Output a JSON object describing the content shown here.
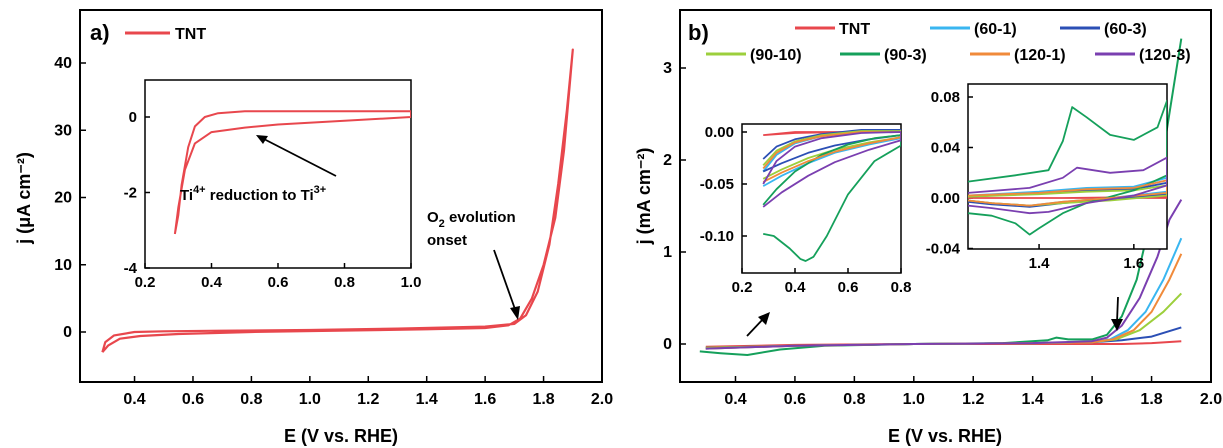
{
  "chart_data": [
    {
      "panel": "a)",
      "type": "line",
      "xlabel": "E (V vs. RHE)",
      "ylabel": "j (μA cm⁻²)",
      "xlim": [
        0.28,
        2.0
      ],
      "ylim": [
        -5,
        45
      ],
      "xticks": [
        "0.4",
        "0.6",
        "0.8",
        "1.0",
        "1.2",
        "1.4",
        "1.6",
        "1.8",
        "2.0"
      ],
      "yticks": [
        "0",
        "10",
        "20",
        "30",
        "40"
      ],
      "legend": [
        "TNT"
      ],
      "legend_position": "top-left",
      "colors": {
        "TNT": "#e8474d"
      },
      "series": [
        {
          "name": "TNT",
          "x": [
            0.29,
            0.31,
            0.35,
            0.42,
            0.55,
            0.8,
            1.1,
            1.4,
            1.6,
            1.68,
            1.72,
            1.76,
            1.8,
            1.84,
            1.87,
            1.9,
            1.88,
            1.85,
            1.82,
            1.78,
            1.74,
            1.7,
            1.6,
            1.3,
            1.0,
            0.7,
            0.5,
            0.4,
            0.33,
            0.3,
            0.29
          ],
          "y": [
            -3.0,
            -2.0,
            -1.0,
            -0.6,
            -0.3,
            0.0,
            0.2,
            0.4,
            0.6,
            1.0,
            2.0,
            5.0,
            10.0,
            17.0,
            27.0,
            42.0,
            33.0,
            22.0,
            13.0,
            6.0,
            2.5,
            1.2,
            0.8,
            0.5,
            0.3,
            0.2,
            0.1,
            0.0,
            -0.5,
            -1.5,
            -3.0
          ]
        }
      ],
      "annotations": [
        {
          "text_parts": [
            "O",
            "2",
            " evolution"
          ],
          "line2": "onset",
          "x": 1.7,
          "y": 1.0
        }
      ],
      "inset": {
        "xlim": [
          0.2,
          1.0
        ],
        "ylim": [
          -4,
          1.0
        ],
        "xticks": [
          "0.2",
          "0.4",
          "0.6",
          "0.8",
          "1.0"
        ],
        "yticks": [
          "0",
          "-2",
          "-4"
        ],
        "annotation": {
          "parts": [
            "Ti",
            "4+",
            " reduction to Ti",
            "3+"
          ],
          "x": 0.5,
          "y": -0.6
        },
        "series": [
          {
            "name": "TNT",
            "x": [
              0.29,
              0.3,
              0.32,
              0.35,
              0.4,
              0.5,
              0.6,
              0.8,
              1.0,
              1.0,
              0.8,
              0.6,
              0.5,
              0.42,
              0.38,
              0.35,
              0.33,
              0.31,
              0.3,
              0.29
            ],
            "y": [
              -3.1,
              -2.4,
              -1.4,
              -0.7,
              -0.4,
              -0.28,
              -0.2,
              -0.1,
              0.0,
              0.15,
              0.15,
              0.15,
              0.15,
              0.1,
              0.0,
              -0.25,
              -0.8,
              -1.8,
              -2.6,
              -3.1
            ]
          }
        ]
      }
    },
    {
      "panel": "b)",
      "type": "line",
      "xlabel": "E (V vs. RHE)",
      "ylabel": "j (mA cm⁻²)",
      "xlim": [
        0.28,
        2.0
      ],
      "ylim": [
        -0.35,
        3.45
      ],
      "xticks": [
        "0.4",
        "0.6",
        "0.8",
        "1.0",
        "1.2",
        "1.4",
        "1.6",
        "1.8",
        "2.0"
      ],
      "yticks": [
        "0",
        "1",
        "2",
        "3"
      ],
      "legend": [
        "TNT",
        "(60-1)",
        "(60-3)",
        "(90-10)",
        "(90-3)",
        "(120-1)",
        "(120-3)"
      ],
      "legend_position": "top",
      "colors": {
        "TNT": "#e8474d",
        "(60-1)": "#39b6f0",
        "(60-3)": "#2b4fb5",
        "(90-10)": "#9ccf3c",
        "(90-3)": "#15a05b",
        "(120-1)": "#f08a3a",
        "(120-3)": "#7a3fb0"
      },
      "series": [
        {
          "name": "TNT",
          "x": [
            0.3,
            0.6,
            1.0,
            1.4,
            1.6,
            1.7,
            1.8,
            1.9
          ],
          "y": [
            -0.03,
            -0.01,
            0.0,
            0.0,
            0.0,
            0.0,
            0.01,
            0.03
          ]
        },
        {
          "name": "(60-1)",
          "x": [
            0.3,
            0.6,
            1.0,
            1.4,
            1.6,
            1.66,
            1.72,
            1.78,
            1.84,
            1.9
          ],
          "y": [
            -0.05,
            -0.02,
            0.0,
            0.01,
            0.02,
            0.05,
            0.15,
            0.35,
            0.7,
            1.15
          ]
        },
        {
          "name": "(60-3)",
          "x": [
            0.3,
            0.6,
            1.0,
            1.4,
            1.6,
            1.7,
            1.8,
            1.9
          ],
          "y": [
            -0.04,
            -0.02,
            0.0,
            0.01,
            0.02,
            0.04,
            0.08,
            0.18
          ]
        },
        {
          "name": "(90-10)",
          "x": [
            0.3,
            0.6,
            1.0,
            1.4,
            1.6,
            1.68,
            1.76,
            1.84,
            1.9
          ],
          "y": [
            -0.04,
            -0.02,
            0.0,
            0.01,
            0.02,
            0.05,
            0.15,
            0.35,
            0.55
          ]
        },
        {
          "name": "(90-3)",
          "x": [
            0.28,
            0.35,
            0.44,
            0.55,
            0.7,
            1.0,
            1.3,
            1.45,
            1.48,
            1.52,
            1.6,
            1.65,
            1.7,
            1.75,
            1.8,
            1.85,
            1.9
          ],
          "y": [
            -0.08,
            -0.1,
            -0.12,
            -0.06,
            -0.02,
            0.0,
            0.01,
            0.04,
            0.07,
            0.05,
            0.05,
            0.1,
            0.3,
            0.7,
            1.4,
            2.3,
            3.32
          ]
        },
        {
          "name": "(120-1)",
          "x": [
            0.3,
            0.6,
            1.0,
            1.4,
            1.6,
            1.67,
            1.74,
            1.8,
            1.86,
            1.9
          ],
          "y": [
            -0.05,
            -0.02,
            0.0,
            0.01,
            0.02,
            0.05,
            0.15,
            0.35,
            0.7,
            0.98
          ]
        },
        {
          "name": "(120-3)",
          "x": [
            0.3,
            0.6,
            1.0,
            1.4,
            1.6,
            1.65,
            1.7,
            1.76,
            1.82,
            1.86,
            1.9
          ],
          "y": [
            -0.05,
            -0.02,
            0.0,
            0.01,
            0.03,
            0.07,
            0.2,
            0.5,
            0.95,
            1.35,
            1.57
          ]
        }
      ],
      "inset_left": {
        "xlim": [
          0.2,
          0.8
        ],
        "ylim": [
          -0.14,
          0.01
        ],
        "xticks": [
          "0.2",
          "0.4",
          "0.6",
          "0.8"
        ],
        "yticks": [
          "0.00",
          "-0.05",
          "-0.10"
        ],
        "series": [
          {
            "name": "TNT",
            "x": [
              0.28,
              0.4,
              0.6,
              0.8,
              0.8,
              0.6,
              0.4,
              0.28
            ],
            "y": [
              -0.003,
              -0.001,
              0.0,
              0.0,
              0.0,
              0.0,
              0.0,
              -0.003
            ]
          },
          {
            "name": "(60-1)",
            "x": [
              0.28,
              0.35,
              0.45,
              0.55,
              0.68,
              0.8,
              0.8,
              0.65,
              0.5,
              0.4,
              0.33,
              0.28
            ],
            "y": [
              -0.052,
              -0.042,
              -0.03,
              -0.02,
              -0.012,
              -0.006,
              0.001,
              0.001,
              -0.004,
              -0.011,
              -0.022,
              -0.038
            ]
          },
          {
            "name": "(60-3)",
            "x": [
              0.28,
              0.35,
              0.45,
              0.55,
              0.68,
              0.8,
              0.8,
              0.65,
              0.5,
              0.4,
              0.33,
              0.28
            ],
            "y": [
              -0.038,
              -0.03,
              -0.02,
              -0.013,
              -0.007,
              -0.003,
              0.002,
              0.002,
              -0.002,
              -0.007,
              -0.014,
              -0.026
            ]
          },
          {
            "name": "(90-10)",
            "x": [
              0.28,
              0.35,
              0.45,
              0.55,
              0.68,
              0.8,
              0.8,
              0.65,
              0.5,
              0.4,
              0.33,
              0.28
            ],
            "y": [
              -0.045,
              -0.036,
              -0.025,
              -0.017,
              -0.01,
              -0.005,
              0.001,
              0.001,
              -0.003,
              -0.009,
              -0.018,
              -0.032
            ]
          },
          {
            "name": "(90-3)",
            "x": [
              0.28,
              0.32,
              0.38,
              0.42,
              0.44,
              0.47,
              0.52,
              0.6,
              0.7,
              0.8,
              0.8,
              0.7,
              0.6,
              0.5,
              0.4,
              0.33,
              0.28
            ],
            "y": [
              -0.098,
              -0.1,
              -0.112,
              -0.122,
              -0.124,
              -0.12,
              -0.1,
              -0.06,
              -0.028,
              -0.013,
              -0.003,
              -0.006,
              -0.012,
              -0.022,
              -0.038,
              -0.055,
              -0.07
            ]
          },
          {
            "name": "(120-1)",
            "x": [
              0.28,
              0.35,
              0.45,
              0.55,
              0.68,
              0.8,
              0.8,
              0.65,
              0.5,
              0.4,
              0.33,
              0.28
            ],
            "y": [
              -0.048,
              -0.039,
              -0.028,
              -0.019,
              -0.011,
              -0.005,
              0.0,
              0.0,
              -0.004,
              -0.01,
              -0.02,
              -0.035
            ]
          },
          {
            "name": "(120-3)",
            "x": [
              0.28,
              0.35,
              0.45,
              0.55,
              0.68,
              0.8,
              0.8,
              0.65,
              0.5,
              0.4,
              0.33,
              0.28
            ],
            "y": [
              -0.072,
              -0.058,
              -0.042,
              -0.029,
              -0.017,
              -0.008,
              0.0,
              -0.001,
              -0.006,
              -0.014,
              -0.028,
              -0.05
            ]
          }
        ]
      },
      "inset_right": {
        "xlim": [
          1.25,
          1.67
        ],
        "ylim": [
          -0.04,
          0.08
        ],
        "xticks": [
          "1.4",
          "1.6"
        ],
        "yticks": [
          "0.08",
          "0.04",
          "0.00",
          "-0.04"
        ],
        "series": [
          {
            "name": "TNT",
            "x": [
              1.25,
              1.45,
              1.67,
              1.67,
              1.45,
              1.25
            ],
            "y": [
              0.0,
              0.0,
              0.001,
              0.0,
              0.0,
              0.0
            ]
          },
          {
            "name": "(60-1)",
            "x": [
              1.25,
              1.4,
              1.5,
              1.6,
              1.67,
              1.67,
              1.55,
              1.45,
              1.38,
              1.3,
              1.25
            ],
            "y": [
              0.002,
              0.005,
              0.008,
              0.009,
              0.016,
              0.005,
              0.0,
              -0.003,
              -0.006,
              -0.004,
              -0.002
            ]
          },
          {
            "name": "(60-3)",
            "x": [
              1.25,
              1.4,
              1.5,
              1.6,
              1.67,
              1.67,
              1.55,
              1.45,
              1.38,
              1.3,
              1.25
            ],
            "y": [
              0.001,
              0.004,
              0.006,
              0.007,
              0.012,
              0.003,
              -0.001,
              -0.004,
              -0.007,
              -0.005,
              -0.003
            ]
          },
          {
            "name": "(90-10)",
            "x": [
              1.25,
              1.4,
              1.5,
              1.6,
              1.67,
              1.67,
              1.55,
              1.45,
              1.38,
              1.3,
              1.25
            ],
            "y": [
              0.001,
              0.003,
              0.005,
              0.006,
              0.01,
              0.002,
              -0.002,
              -0.004,
              -0.006,
              -0.004,
              -0.002
            ]
          },
          {
            "name": "(90-3)",
            "x": [
              1.25,
              1.35,
              1.42,
              1.45,
              1.47,
              1.5,
              1.55,
              1.6,
              1.65,
              1.67,
              1.67,
              1.6,
              1.5,
              1.45,
              1.4,
              1.38,
              1.35,
              1.3,
              1.25
            ],
            "y": [
              0.013,
              0.018,
              0.022,
              0.045,
              0.072,
              0.064,
              0.05,
              0.046,
              0.056,
              0.077,
              0.018,
              0.006,
              -0.004,
              -0.012,
              -0.024,
              -0.029,
              -0.02,
              -0.014,
              -0.012
            ]
          },
          {
            "name": "(120-1)",
            "x": [
              1.25,
              1.4,
              1.5,
              1.6,
              1.67,
              1.67,
              1.55,
              1.45,
              1.38,
              1.3,
              1.25
            ],
            "y": [
              0.002,
              0.004,
              0.007,
              0.008,
              0.014,
              0.004,
              0.0,
              -0.003,
              -0.006,
              -0.004,
              -0.002
            ]
          },
          {
            "name": "(120-3)",
            "x": [
              1.25,
              1.38,
              1.45,
              1.48,
              1.55,
              1.62,
              1.67,
              1.67,
              1.6,
              1.5,
              1.42,
              1.38,
              1.3,
              1.25
            ],
            "y": [
              0.004,
              0.008,
              0.016,
              0.024,
              0.02,
              0.022,
              0.032,
              0.01,
              0.002,
              -0.004,
              -0.011,
              -0.012,
              -0.008,
              -0.006
            ]
          }
        ]
      }
    }
  ]
}
